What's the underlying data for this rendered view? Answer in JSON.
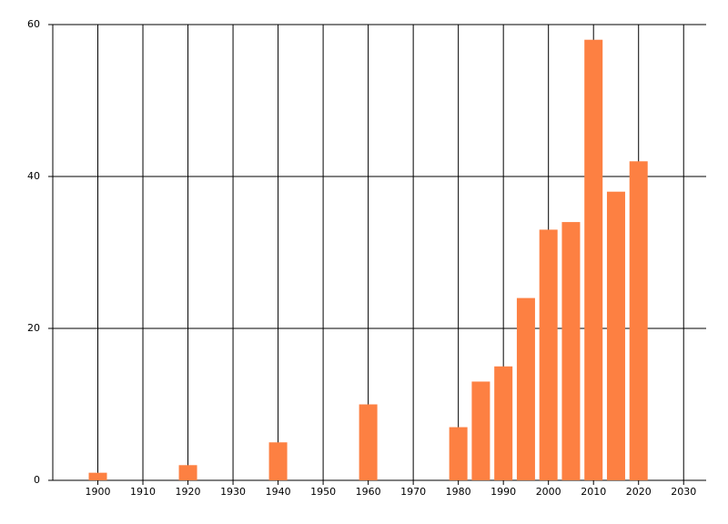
{
  "chart_data": {
    "type": "bar",
    "x": [
      1900,
      1920,
      1940,
      1960,
      1980,
      1985,
      1990,
      1995,
      2000,
      2005,
      2010,
      2015,
      2020
    ],
    "values": [
      1,
      2,
      5,
      10,
      7,
      13,
      15,
      24,
      33,
      34,
      58,
      38,
      42
    ],
    "color": "#fd8042",
    "xlim": [
      1890,
      2035
    ],
    "xticks": [
      1900,
      1910,
      1920,
      1930,
      1940,
      1950,
      1960,
      1970,
      1980,
      1990,
      2000,
      2010,
      2020,
      2030
    ],
    "ylim": [
      0,
      60
    ],
    "yticks": [
      0,
      20,
      40,
      60
    ],
    "grid": true
  }
}
